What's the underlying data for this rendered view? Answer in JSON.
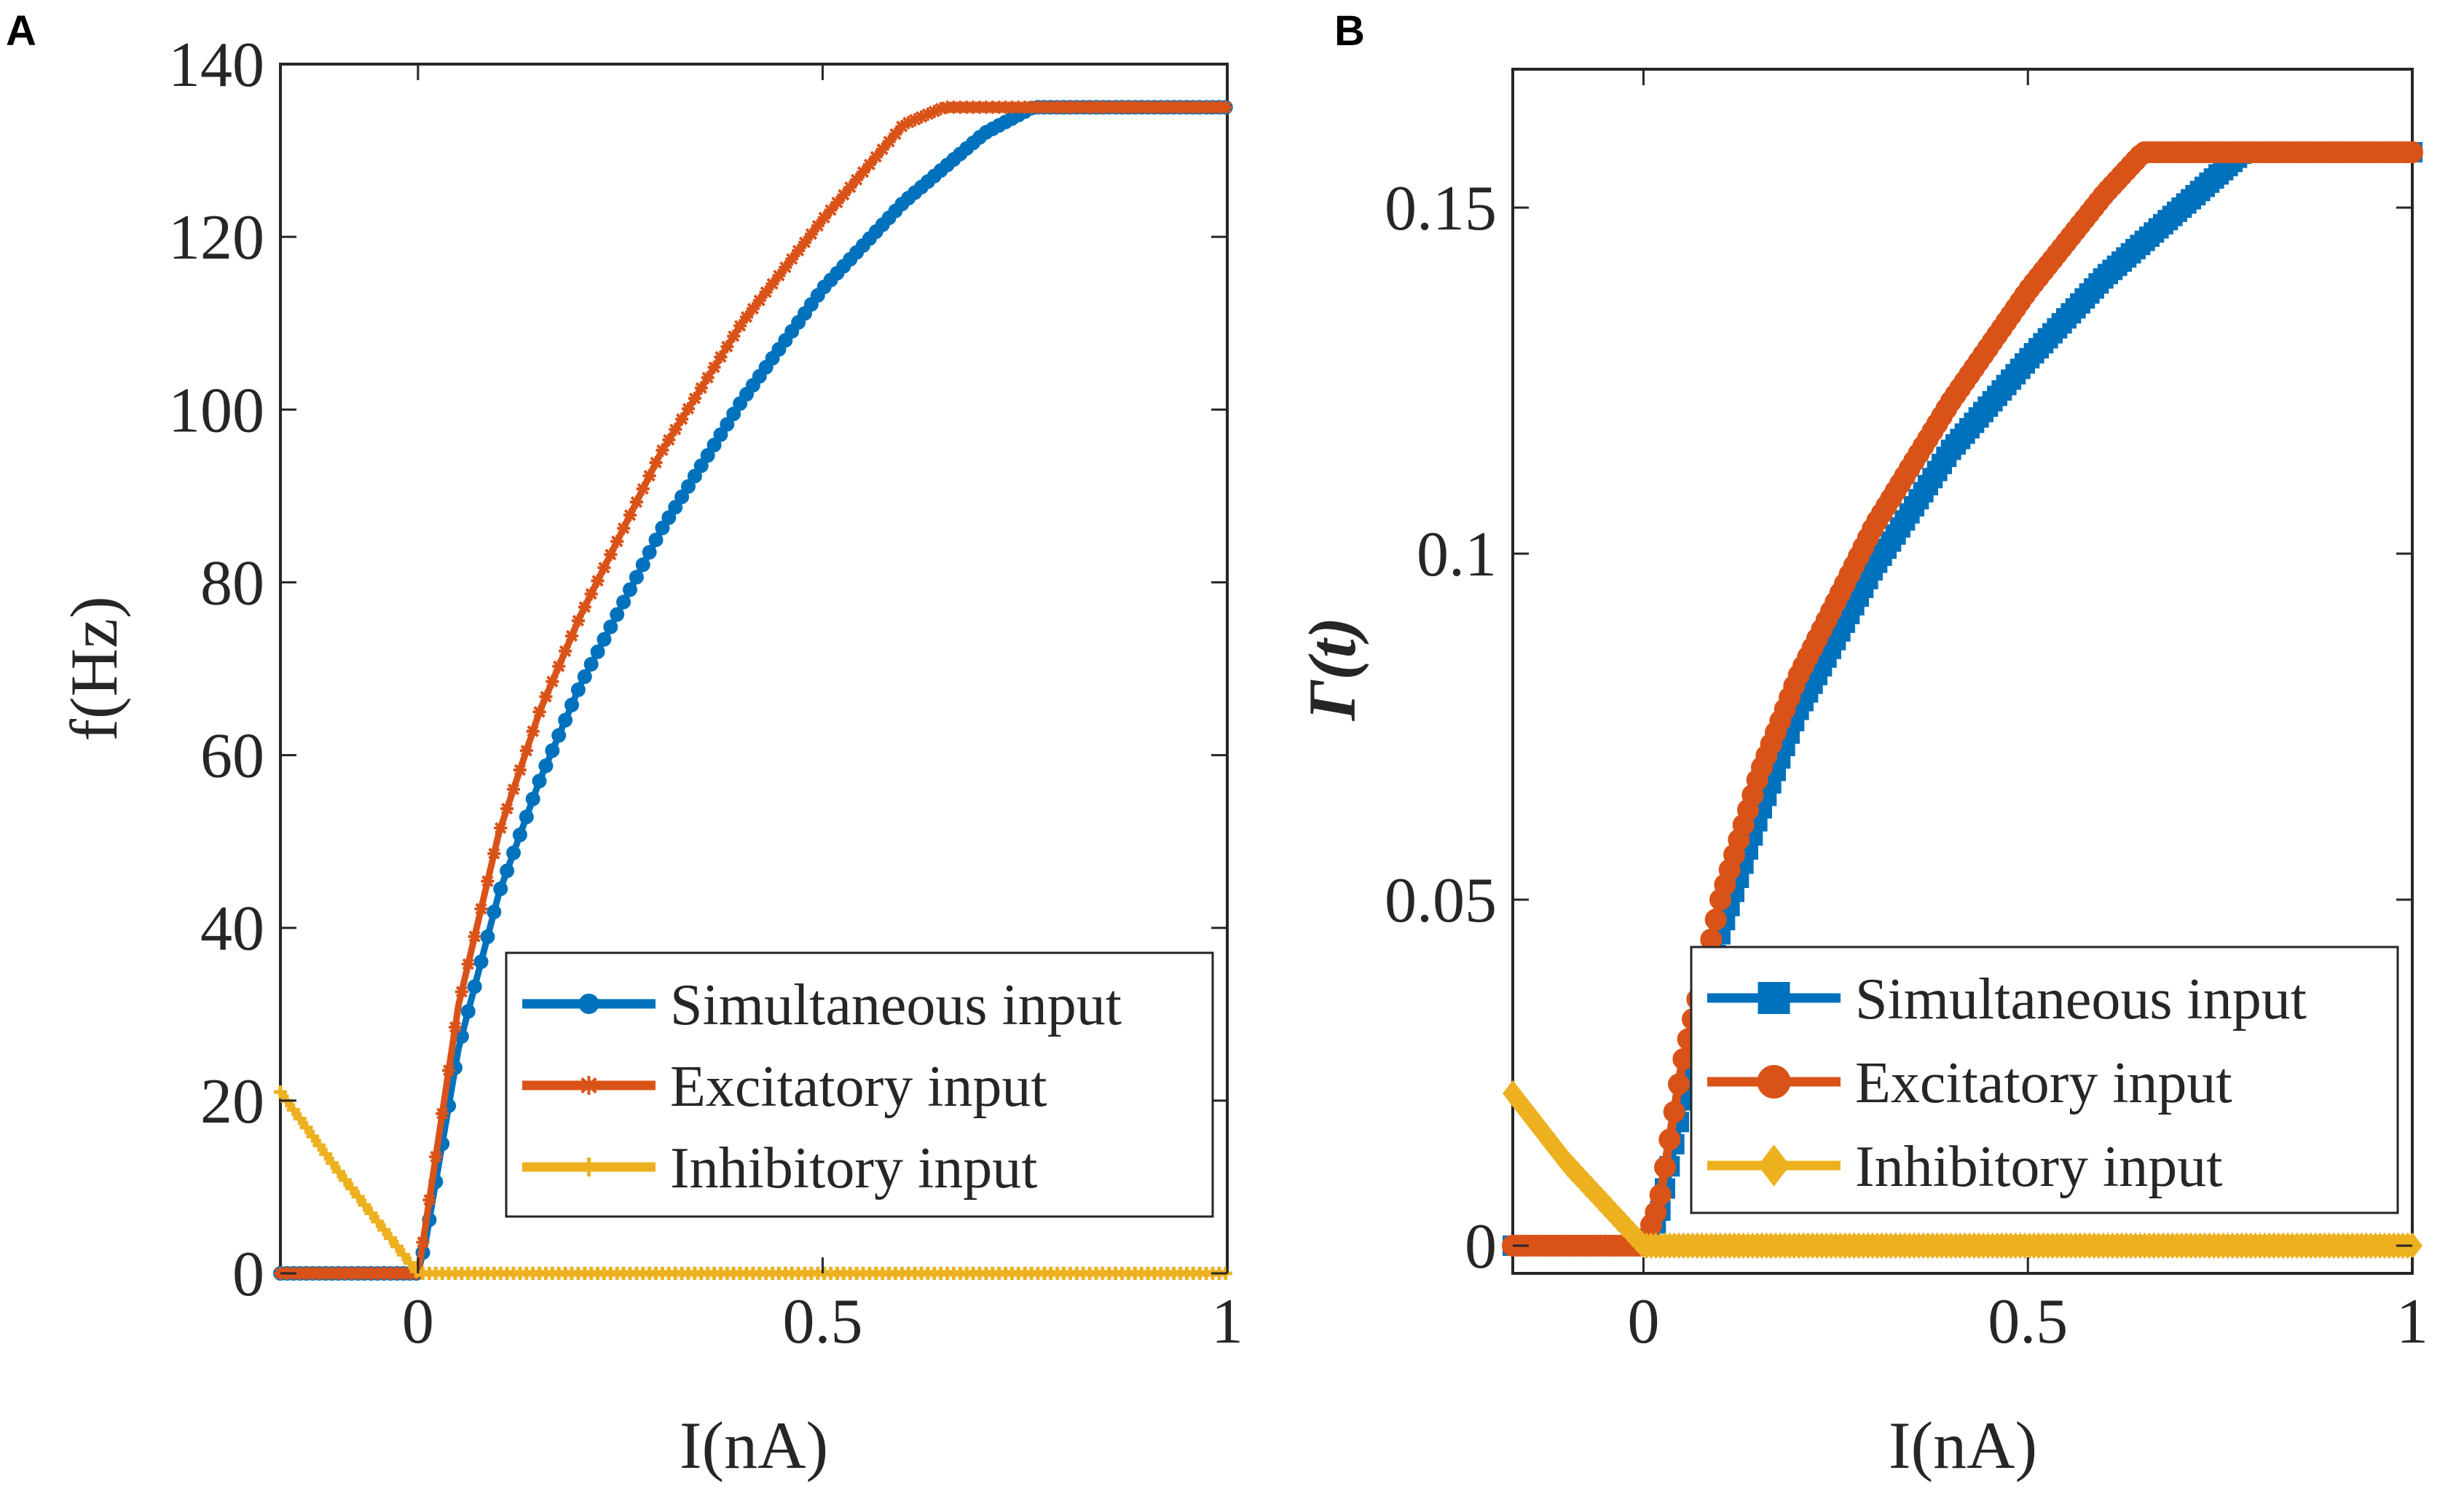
{
  "chart_data": [
    {
      "panel": "A",
      "type": "line",
      "xlabel": "I(nA)",
      "ylabel": "f(Hz)",
      "xlim": [
        -0.17,
        1.0
      ],
      "ylim": [
        0,
        140
      ],
      "xticks": [
        0,
        0.5,
        1
      ],
      "xtick_labels": [
        "0",
        "0.5",
        "1"
      ],
      "yticks": [
        0,
        20,
        40,
        60,
        80,
        100,
        120,
        140
      ],
      "ytick_labels": [
        "0",
        "20",
        "40",
        "60",
        "80",
        "100",
        "120",
        "140"
      ],
      "grid": false,
      "legend_position": "bottom-right",
      "series": [
        {
          "name": "Simultaneous input",
          "color": "#0072BD",
          "marker": "circle",
          "x": [
            -0.17,
            0.0,
            0.01,
            0.05,
            0.1,
            0.15,
            0.2,
            0.3,
            0.4,
            0.5,
            0.6,
            0.7,
            0.76,
            0.8,
            0.9,
            1.0
          ],
          "y": [
            0,
            0,
            4,
            26,
            44,
            57,
            68,
            86,
            101,
            114,
            124,
            132,
            135,
            135,
            135,
            135
          ]
        },
        {
          "name": "Excitatory input",
          "color": "#D95319",
          "marker": "asterisk",
          "x": [
            -0.17,
            0.0,
            0.01,
            0.05,
            0.1,
            0.15,
            0.2,
            0.3,
            0.4,
            0.5,
            0.6,
            0.65,
            0.8,
            1.0
          ],
          "y": [
            0,
            0,
            6,
            31,
            51,
            65,
            76,
            95,
            110,
            122,
            133,
            135,
            135,
            135
          ]
        },
        {
          "name": "Inhibitory input",
          "color": "#EDB120",
          "marker": "plus",
          "x": [
            -0.17,
            -0.1,
            0.0,
            0.2,
            0.4,
            0.6,
            0.8,
            1.0
          ],
          "y": [
            21,
            12,
            0,
            0,
            0,
            0,
            0,
            0
          ]
        }
      ]
    },
    {
      "panel": "B",
      "type": "line",
      "xlabel": "I(nA)",
      "ylabel": "Γ(t)",
      "xlim": [
        -0.17,
        1.0
      ],
      "ylim": [
        -0.004,
        0.17
      ],
      "xticks": [
        0,
        0.5,
        1
      ],
      "xtick_labels": [
        "0",
        "0.5",
        "1"
      ],
      "yticks": [
        0,
        0.05,
        0.1,
        0.15
      ],
      "ytick_labels": [
        "0",
        "0.05",
        "0.1",
        "0.15"
      ],
      "grid": false,
      "legend_position": "bottom-right",
      "series": [
        {
          "name": "Simultaneous input",
          "color": "#0072BD",
          "marker": "square",
          "x": [
            -0.17,
            0.0,
            0.02,
            0.05,
            0.1,
            0.15,
            0.2,
            0.3,
            0.4,
            0.5,
            0.6,
            0.7,
            0.78,
            0.85,
            1.0
          ],
          "y": [
            0,
            0,
            0.004,
            0.02,
            0.045,
            0.062,
            0.077,
            0.098,
            0.115,
            0.128,
            0.14,
            0.15,
            0.158,
            0.158,
            0.158
          ]
        },
        {
          "name": "Excitatory input",
          "color": "#D95319",
          "marker": "circle",
          "x": [
            -0.17,
            0.0,
            0.02,
            0.05,
            0.1,
            0.15,
            0.2,
            0.3,
            0.4,
            0.5,
            0.6,
            0.65,
            0.8,
            1.0
          ],
          "y": [
            0,
            0,
            0.006,
            0.026,
            0.05,
            0.068,
            0.082,
            0.104,
            0.122,
            0.138,
            0.152,
            0.158,
            0.158,
            0.158
          ]
        },
        {
          "name": "Inhibitory input",
          "color": "#EDB120",
          "marker": "diamond",
          "x": [
            -0.17,
            -0.1,
            0.0,
            0.2,
            0.4,
            0.6,
            0.8,
            1.0
          ],
          "y": [
            0.022,
            0.012,
            0,
            0,
            0,
            0,
            0,
            0
          ]
        }
      ]
    }
  ]
}
